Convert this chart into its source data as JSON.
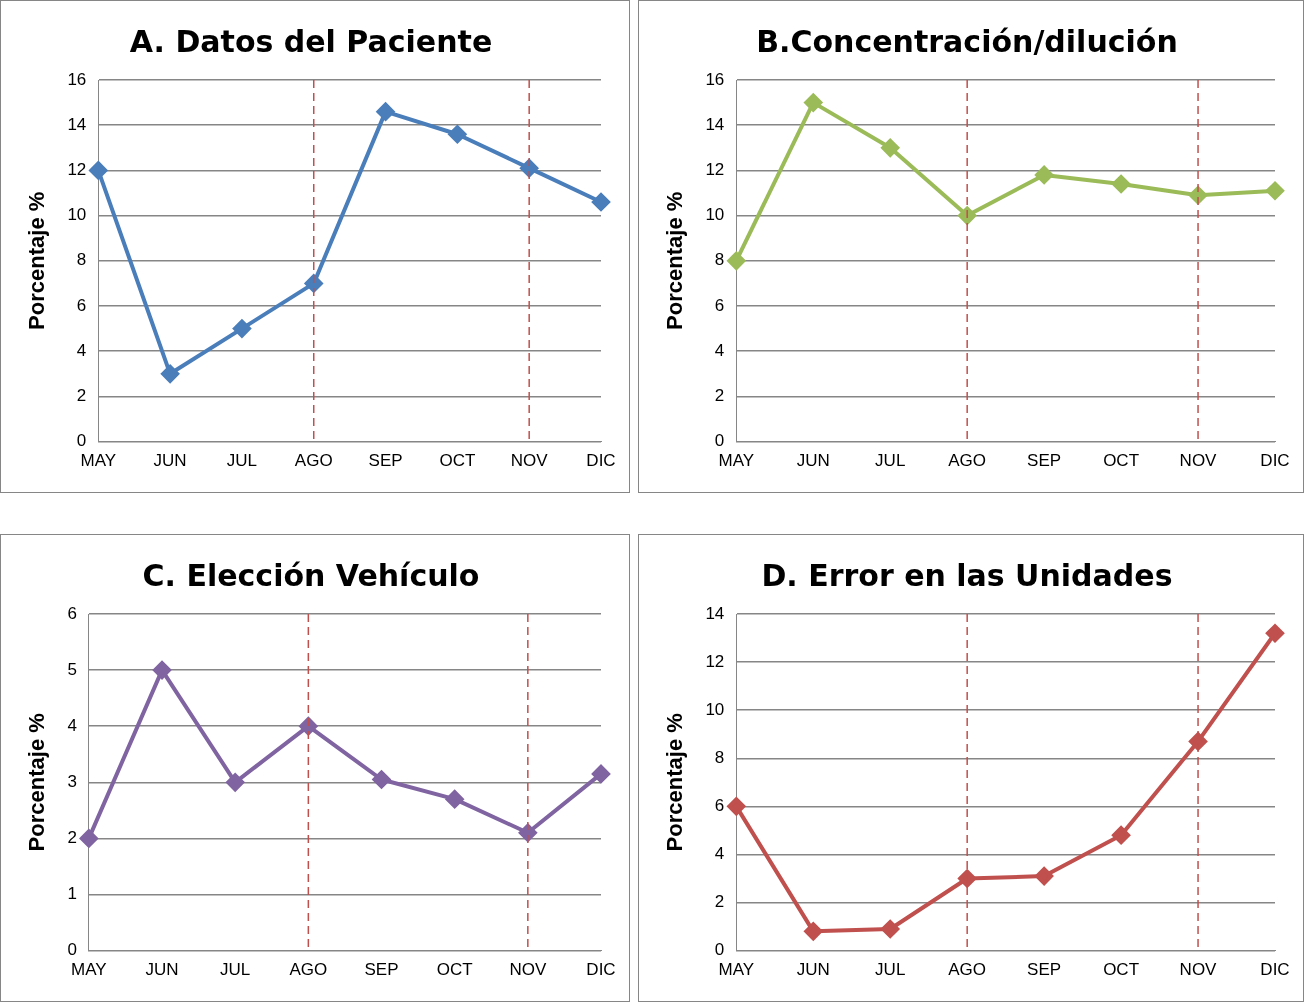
{
  "chart_data": [
    {
      "type": "line",
      "title": "A. Datos del Paciente",
      "ylabel": "Porcentaje %",
      "categories": [
        "MAY",
        "JUN",
        "JUL",
        "AGO",
        "SEP",
        "OCT",
        "NOV",
        "DIC"
      ],
      "series": [
        {
          "color": "#4a7ebb",
          "values": [
            12,
            3,
            5,
            7,
            14.6,
            13.6,
            12.1,
            10.6
          ]
        }
      ],
      "ylim": [
        0,
        16
      ],
      "yticks": [
        0,
        2,
        4,
        6,
        8,
        10,
        12,
        14,
        16
      ],
      "grid": "y",
      "legend": false,
      "marker": "diamond",
      "line_style": "solid",
      "ref_lines": [
        {
          "axis": "x",
          "value": "AGO",
          "color": "#c0504d",
          "line_style": "dashed"
        },
        {
          "axis": "x",
          "value": "NOV",
          "color": "#c0504d",
          "line_style": "dashed"
        }
      ]
    },
    {
      "type": "line",
      "title": "B.Concentración/dilución",
      "ylabel": "Porcentaje %",
      "categories": [
        "MAY",
        "JUN",
        "JUL",
        "AGO",
        "SEP",
        "OCT",
        "NOV",
        "DIC"
      ],
      "series": [
        {
          "color": "#9bbb59",
          "values": [
            8,
            15,
            13,
            10,
            11.8,
            11.4,
            10.9,
            11.1
          ]
        }
      ],
      "ylim": [
        0,
        16
      ],
      "yticks": [
        0,
        2,
        4,
        6,
        8,
        10,
        12,
        14,
        16
      ],
      "grid": "y",
      "legend": false,
      "marker": "diamond",
      "line_style": "solid",
      "ref_lines": [
        {
          "axis": "x",
          "value": "AGO",
          "color": "#c0504d",
          "line_style": "dashed"
        },
        {
          "axis": "x",
          "value": "NOV",
          "color": "#c0504d",
          "line_style": "dashed"
        }
      ]
    },
    {
      "type": "line",
      "title": "C. Elección Vehículo",
      "ylabel": "Porcentaje %",
      "categories": [
        "MAY",
        "JUN",
        "JUL",
        "AGO",
        "SEP",
        "OCT",
        "NOV",
        "DIC"
      ],
      "series": [
        {
          "color": "#8064a2",
          "values": [
            2,
            5,
            3,
            4,
            3.05,
            2.7,
            2.1,
            3.15
          ]
        }
      ],
      "ylim": [
        0,
        6
      ],
      "yticks": [
        0,
        1,
        2,
        3,
        4,
        5,
        6
      ],
      "grid": "y",
      "legend": false,
      "marker": "diamond",
      "line_style": "solid",
      "ref_lines": [
        {
          "axis": "x",
          "value": "AGO",
          "color": "#c0504d",
          "line_style": "dashed"
        },
        {
          "axis": "x",
          "value": "NOV",
          "color": "#c0504d",
          "line_style": "dashed"
        }
      ]
    },
    {
      "type": "line",
      "title": "D. Error en las Unidades",
      "ylabel": "Porcentaje %",
      "categories": [
        "MAY",
        "JUN",
        "JUL",
        "AGO",
        "SEP",
        "OCT",
        "NOV",
        "DIC"
      ],
      "series": [
        {
          "color": "#c0504d",
          "values": [
            6,
            0.8,
            0.9,
            3,
            3.1,
            4.8,
            8.7,
            13.2
          ]
        }
      ],
      "ylim": [
        0,
        14
      ],
      "yticks": [
        0,
        2,
        4,
        6,
        8,
        10,
        12,
        14
      ],
      "grid": "y",
      "legend": false,
      "marker": "diamond",
      "line_style": "solid",
      "ref_lines": [
        {
          "axis": "x",
          "value": "AGO",
          "color": "#c0504d",
          "line_style": "dashed"
        },
        {
          "axis": "x",
          "value": "NOV",
          "color": "#c0504d",
          "line_style": "dashed"
        }
      ]
    }
  ]
}
